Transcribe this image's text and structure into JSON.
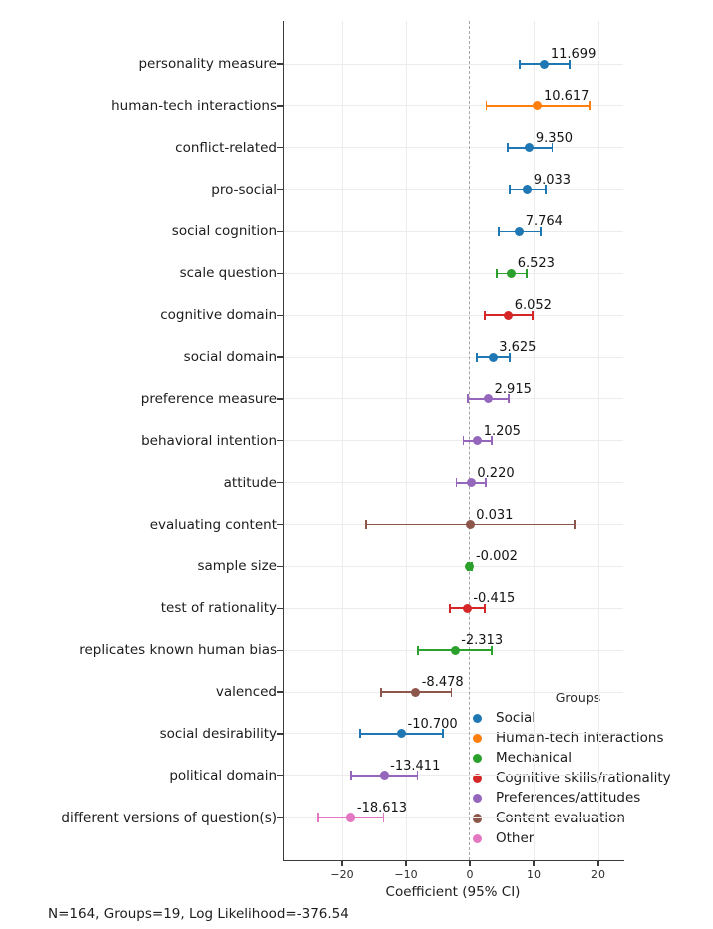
{
  "chart_data": {
    "type": "scatter",
    "subtype": "forest-plot-coefficients-with-95ci",
    "title": "",
    "xlabel": "Coefficient (95% CI)",
    "ylabel": "",
    "xlim": [
      -29.2,
      23.9
    ],
    "x_ticks": [
      -20,
      -10,
      0,
      10,
      20
    ],
    "x_tick_labels": [
      "−20",
      "−10",
      "0",
      "10",
      "20"
    ],
    "zero_reference_line": 0,
    "grid": true,
    "footnote": "N=164, Groups=19, Log Likelihood=-376.54",
    "legend": {
      "title": "Groups",
      "position": "lower right",
      "entries": [
        {
          "label": "Social",
          "color": "#1f77b4"
        },
        {
          "label": "Human-tech interactions",
          "color": "#ff7f0e"
        },
        {
          "label": "Mechanical",
          "color": "#2ca02c"
        },
        {
          "label": "Cognitive skills/rationality",
          "color": "#d62728"
        },
        {
          "label": "Preferences/attitudes",
          "color": "#9467bd"
        },
        {
          "label": "Content evaluation",
          "color": "#8c564b"
        },
        {
          "label": "Other",
          "color": "#e377c2"
        }
      ]
    },
    "points": [
      {
        "category": "personality measure",
        "value": 11.699,
        "value_label": "11.699",
        "ci": [
          7.8,
          15.6
        ],
        "group": "Social",
        "color": "#1f77b4"
      },
      {
        "category": "human-tech interactions",
        "value": 10.617,
        "value_label": "10.617",
        "ci": [
          2.6,
          18.7
        ],
        "group": "Human-tech interactions",
        "color": "#ff7f0e"
      },
      {
        "category": "conflict-related",
        "value": 9.35,
        "value_label": "9.350",
        "ci": [
          5.9,
          12.9
        ],
        "group": "Social",
        "color": "#1f77b4"
      },
      {
        "category": "pro-social",
        "value": 9.033,
        "value_label": "9.033",
        "ci": [
          6.2,
          11.9
        ],
        "group": "Social",
        "color": "#1f77b4"
      },
      {
        "category": "social cognition",
        "value": 7.764,
        "value_label": "7.764",
        "ci": [
          4.5,
          11.1
        ],
        "group": "Social",
        "color": "#1f77b4"
      },
      {
        "category": "scale question",
        "value": 6.523,
        "value_label": "6.523",
        "ci": [
          4.2,
          8.9
        ],
        "group": "Mechanical",
        "color": "#2ca02c"
      },
      {
        "category": "cognitive domain",
        "value": 6.052,
        "value_label": "6.052",
        "ci": [
          2.3,
          9.8
        ],
        "group": "Cognitive skills/rationality",
        "color": "#d62728"
      },
      {
        "category": "social domain",
        "value": 3.625,
        "value_label": "3.625",
        "ci": [
          1.1,
          6.2
        ],
        "group": "Social",
        "color": "#1f77b4"
      },
      {
        "category": "preference measure",
        "value": 2.915,
        "value_label": "2.915",
        "ci": [
          -0.3,
          6.1
        ],
        "group": "Preferences/attitudes",
        "color": "#9467bd"
      },
      {
        "category": "behavioral intention",
        "value": 1.205,
        "value_label": "1.205",
        "ci": [
          -1.0,
          3.4
        ],
        "group": "Preferences/attitudes",
        "color": "#9467bd"
      },
      {
        "category": "attitude",
        "value": 0.22,
        "value_label": "0.220",
        "ci": [
          -2.1,
          2.5
        ],
        "group": "Preferences/attitudes",
        "color": "#9467bd"
      },
      {
        "category": "evaluating content",
        "value": 0.031,
        "value_label": "0.031",
        "ci": [
          -16.3,
          16.4
        ],
        "group": "Content evaluation",
        "color": "#8c564b"
      },
      {
        "category": "sample size",
        "value": -0.002,
        "value_label": "-0.002",
        "ci": [
          -0.3,
          0.3
        ],
        "group": "Mechanical",
        "color": "#2ca02c"
      },
      {
        "category": "test of rationality",
        "value": -0.415,
        "value_label": "-0.415",
        "ci": [
          -3.1,
          2.3
        ],
        "group": "Cognitive skills/rationality",
        "color": "#d62728"
      },
      {
        "category": "replicates known human bias",
        "value": -2.313,
        "value_label": "-2.313",
        "ci": [
          -8.1,
          3.4
        ],
        "group": "Mechanical",
        "color": "#2ca02c"
      },
      {
        "category": "valenced",
        "value": -8.478,
        "value_label": "-8.478",
        "ci": [
          -13.9,
          -2.9
        ],
        "group": "Content evaluation",
        "color": "#8c564b"
      },
      {
        "category": "social desirability",
        "value": -10.7,
        "value_label": "-10.700",
        "ci": [
          -17.2,
          -4.2
        ],
        "group": "Social",
        "color": "#1f77b4"
      },
      {
        "category": "political domain",
        "value": -13.411,
        "value_label": "-13.411",
        "ci": [
          -18.6,
          -8.2
        ],
        "group": "Preferences/attitudes",
        "color": "#9467bd"
      },
      {
        "category": "different versions of question(s)",
        "value": -18.613,
        "value_label": "-18.613",
        "ci": [
          -23.7,
          -13.5
        ],
        "group": "Other",
        "color": "#e377c2"
      }
    ]
  }
}
